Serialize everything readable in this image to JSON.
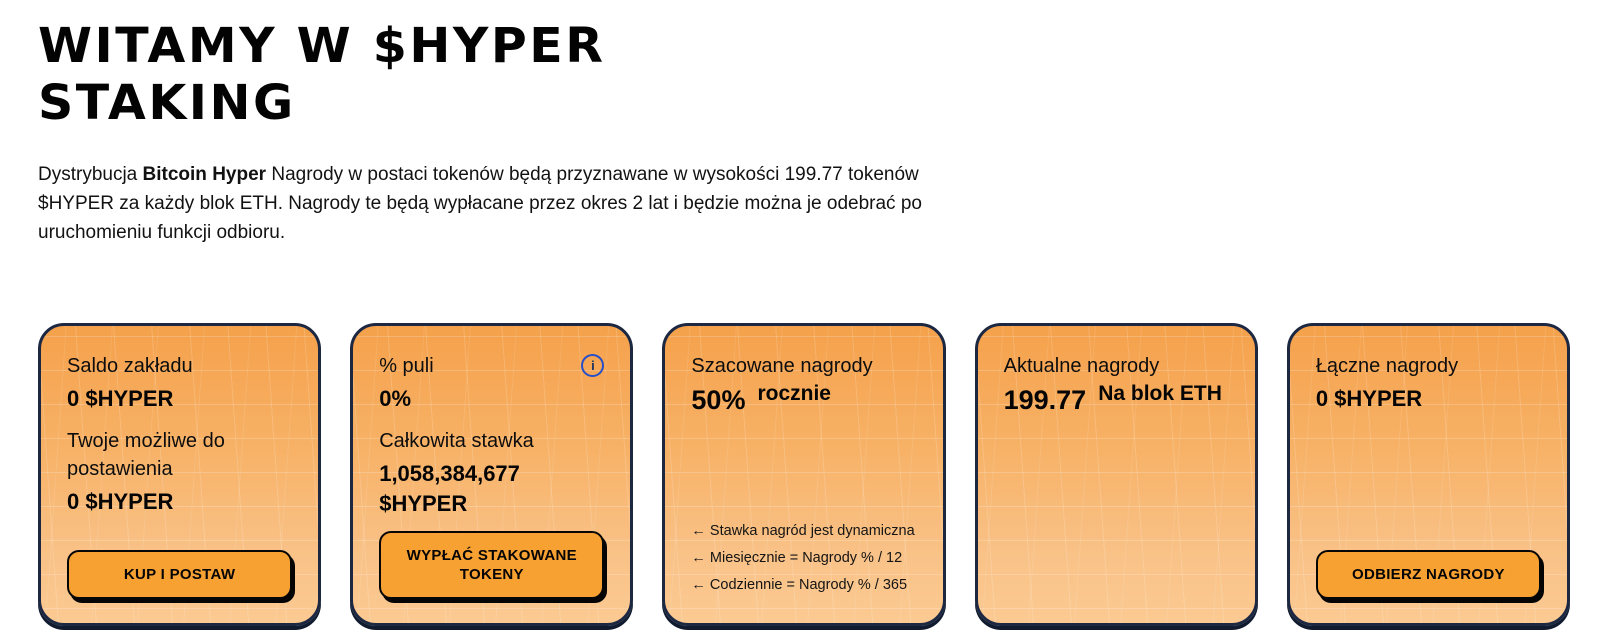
{
  "header": {
    "title_line1": "WITAMY W $HYPER",
    "title_line2": "STAKING",
    "intro": {
      "before_bold": "Dystrybucja ",
      "bold": "Bitcoin Hyper",
      "after_bold": " Nagrody w postaci tokenów będą przyznawane w wysokości 199.77 tokenów $HYPER za każdy blok ETH. Nagrody te będą wypłacane przez okres 2 lat i będzie można je odebrać po uruchomieniu funkcji odbioru."
    }
  },
  "icons": {
    "info_glyph": "i"
  },
  "colors": {
    "card_border": "#1c2742",
    "card_gradient_top": "#f5a14b",
    "card_gradient_bottom": "#fbca92",
    "button_orange": "#f7a133",
    "info_icon_blue": "#2750c8"
  },
  "cards": {
    "stake_balance": {
      "label1": "Saldo zakładu",
      "value1": "0 $HYPER",
      "label2": "Twoje możliwe do postawienia",
      "value2": "0 $HYPER",
      "button": "KUP I POSTAW"
    },
    "pool_share": {
      "label1": "% puli",
      "value1": "0%",
      "label2": "Całkowita stawka",
      "value2": "1,058,384,677 $HYPER",
      "button": "WYPŁAĆ STAKOWANE TOKENY"
    },
    "estimated_rewards": {
      "label": "Szacowane nagrody",
      "value": "50%",
      "unit": "rocznie",
      "notes": [
        "←  Stawka nagród jest dynamiczna",
        "←  Miesięcznie = Nagrody % / 12",
        "←  Codziennie = Nagrody % / 365"
      ]
    },
    "current_rewards": {
      "label": "Aktualne nagrody",
      "value": "199.77",
      "unit": "Na blok ETH"
    },
    "total_rewards": {
      "label": "Łączne nagrody",
      "value": "0 $HYPER",
      "button": "ODBIERZ NAGRODY"
    }
  }
}
